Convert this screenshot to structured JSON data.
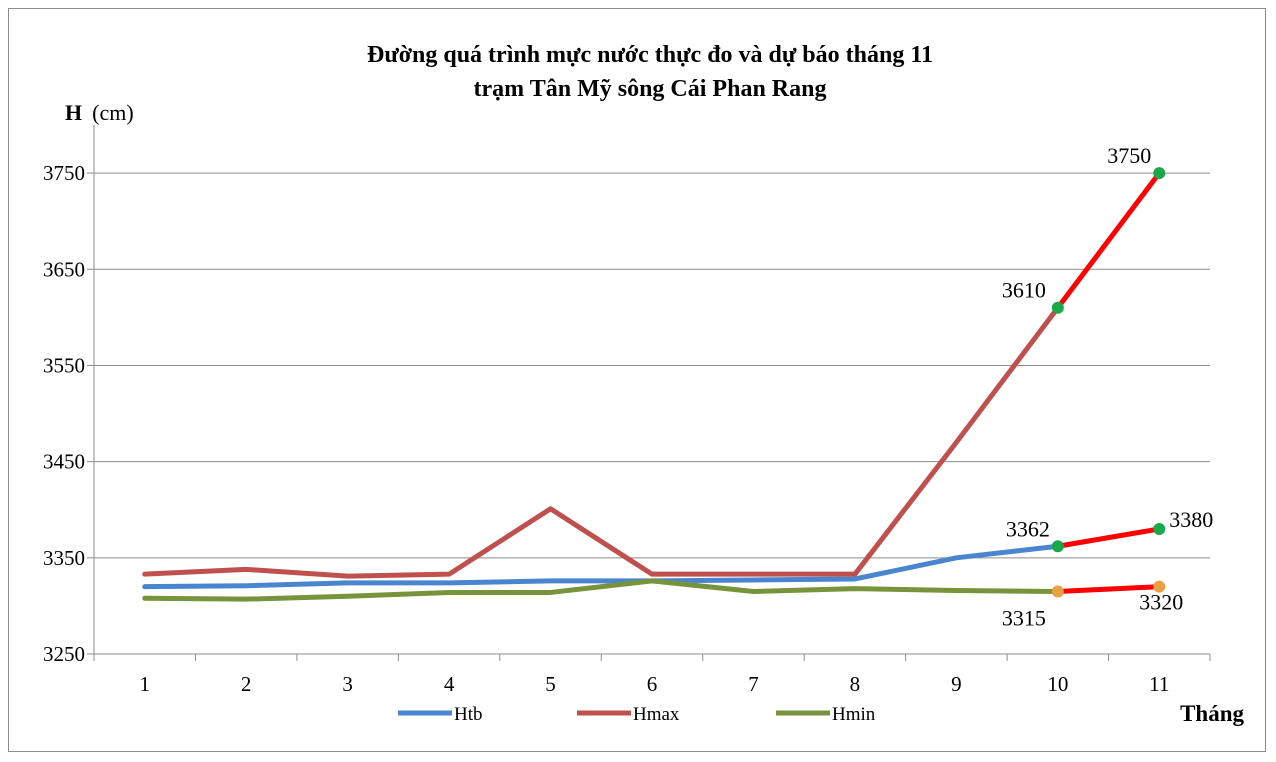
{
  "chart_data": {
    "type": "line",
    "title_line1": "Đường quá trình mực nước thực đo và dự báo tháng 11",
    "title_line2": "trạm Tân Mỹ sông Cái Phan Rang",
    "ylabel_bold": "H",
    "ylabel_unit": "(cm)",
    "xlabel": "Tháng",
    "x": [
      1,
      2,
      3,
      4,
      5,
      6,
      7,
      8,
      9,
      10,
      11
    ],
    "ylim": [
      3250,
      3800
    ],
    "yticks": [
      3250,
      3350,
      3450,
      3550,
      3650,
      3750
    ],
    "grid": true,
    "legend_position": "bottom",
    "series": [
      {
        "name": "Htb",
        "color": "#4a86d0",
        "values": [
          3320,
          3321,
          3324,
          3324,
          3326,
          3326,
          3327,
          3328,
          3350,
          3362,
          null
        ]
      },
      {
        "name": "Hmax",
        "color": "#c0504d",
        "values": [
          3333,
          3338,
          3331,
          3333,
          3401,
          3333,
          3333,
          3333,
          3470,
          3610,
          null
        ]
      },
      {
        "name": "Hmin",
        "color": "#77933c",
        "values": [
          3308,
          3307,
          3310,
          3314,
          3314,
          3326,
          3315,
          3318,
          3316,
          3315,
          null
        ]
      }
    ],
    "forecast": {
      "color": "#ff0000",
      "segments": [
        {
          "from": [
            10,
            3610
          ],
          "to": [
            11,
            3750
          ]
        },
        {
          "from": [
            10,
            3362
          ],
          "to": [
            11,
            3380
          ]
        },
        {
          "from": [
            10,
            3315
          ],
          "to": [
            11,
            3320
          ]
        }
      ]
    },
    "annotations": [
      {
        "x": 11,
        "y": 3750,
        "label": "3750",
        "marker": "#1aa84a",
        "pos": "above-left"
      },
      {
        "x": 10,
        "y": 3610,
        "label": "3610",
        "marker": "#1aa84a",
        "pos": "left"
      },
      {
        "x": 10,
        "y": 3362,
        "label": "3362",
        "marker": "#1aa84a",
        "pos": "above-left"
      },
      {
        "x": 11,
        "y": 3380,
        "label": "3380",
        "marker": "#1aa84a",
        "pos": "right"
      },
      {
        "x": 10,
        "y": 3315,
        "label": "3315",
        "marker": "#e8a040",
        "pos": "below-left"
      },
      {
        "x": 11,
        "y": 3320,
        "label": "3320",
        "marker": "#e8a040",
        "pos": "below-right"
      }
    ]
  }
}
